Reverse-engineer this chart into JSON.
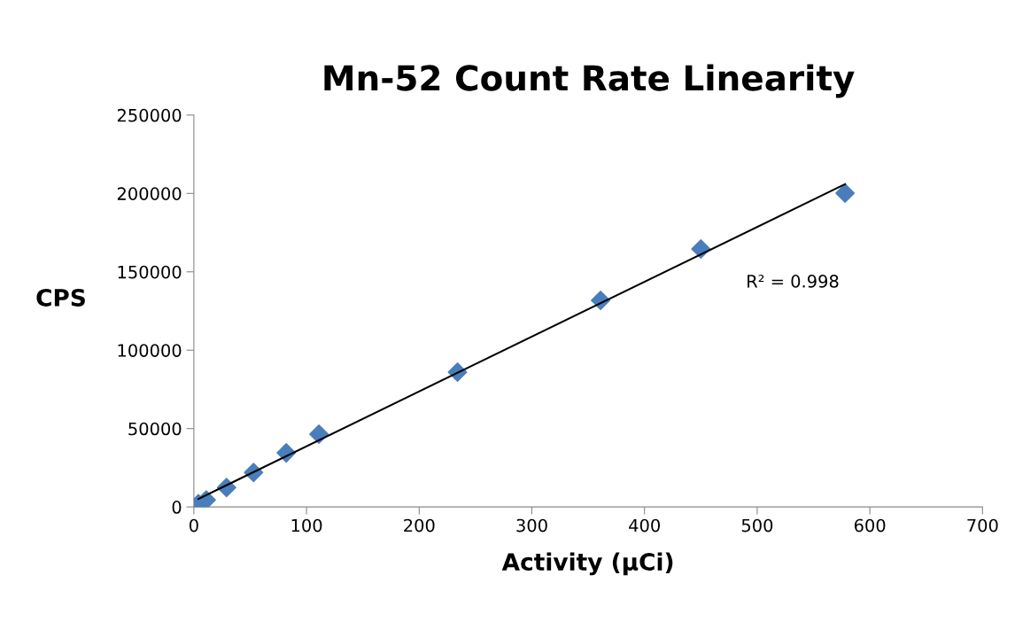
{
  "chart_data": {
    "type": "scatter",
    "title": "Mn-52 Count Rate Linearity",
    "xlabel": "Activity (µCi)",
    "ylabel": "CPS",
    "marker": "diamond",
    "grid": false,
    "series": [
      {
        "color": "#4a7ebb",
        "x": [
          4,
          11,
          29,
          53,
          82,
          111,
          234,
          361,
          450,
          578
        ],
        "values": [
          2000,
          4500,
          12400,
          22000,
          34500,
          46400,
          86000,
          131800,
          164600,
          200200
        ]
      },
      {
        "type": "line",
        "color": "#000000",
        "marker": "none",
        "x": [
          4,
          578
        ],
        "values": [
          5100,
          205900
        ]
      }
    ],
    "annotations": [
      "R² = 0.998"
    ],
    "xlim": [
      0,
      700
    ],
    "xticks": [
      0,
      100,
      200,
      300,
      400,
      500,
      600,
      700
    ],
    "ylim": [
      0,
      250000
    ],
    "yticks": [
      0,
      50000,
      100000,
      150000,
      200000,
      250000
    ]
  }
}
